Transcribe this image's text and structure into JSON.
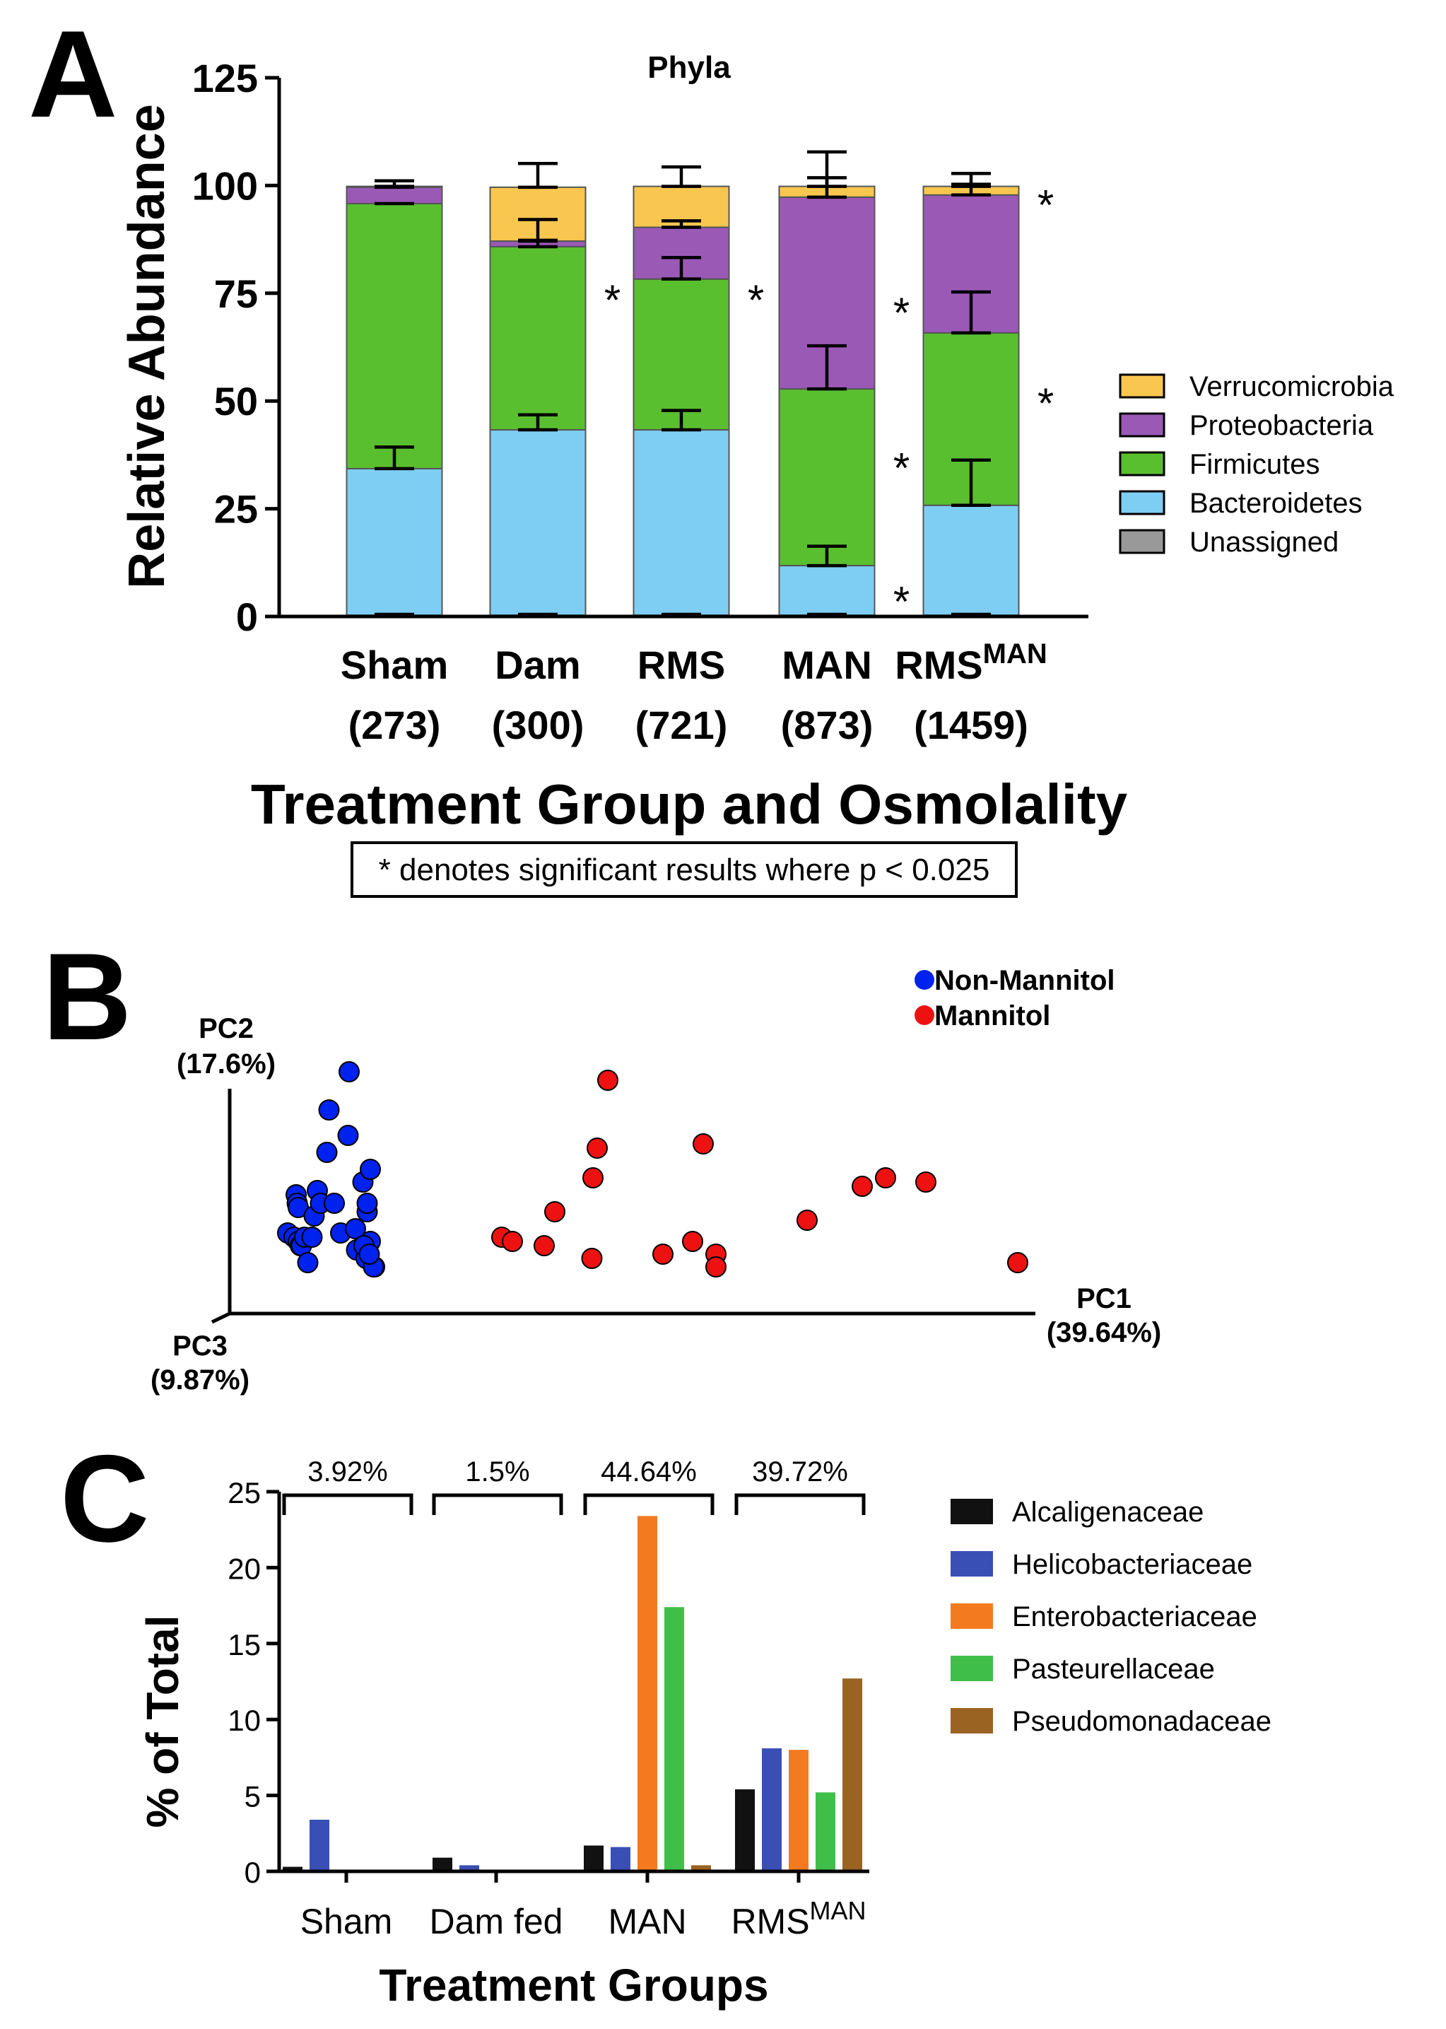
{
  "figure": {
    "panels": {
      "a": "A",
      "b": "B",
      "c": "C"
    }
  },
  "chart_data": [
    {
      "id": "A",
      "type": "bar",
      "stacked": true,
      "title": "Phyla",
      "ylabel": "Relative Abundance",
      "xlabel": "Treatment Group and Osmolality",
      "ylim": [
        0,
        125
      ],
      "yticks": [
        "0",
        "25",
        "50",
        "75",
        "100",
        "125"
      ],
      "categories": [
        {
          "name": "Sham",
          "sup": "",
          "osm": "(273)"
        },
        {
          "name": "Dam",
          "sup": "",
          "osm": "(300)"
        },
        {
          "name": "RMS",
          "sup": "",
          "osm": "(721)"
        },
        {
          "name": "MAN",
          "sup": "",
          "osm": "(873)"
        },
        {
          "name": "RMS",
          "sup": "MAN",
          "osm": "(1459)"
        }
      ],
      "series": [
        {
          "name": "Unassigned",
          "color": "#999999",
          "values": [
            0.3,
            0.3,
            0.3,
            0.3,
            0.3
          ],
          "errors": [
            0,
            0,
            0,
            0,
            0
          ]
        },
        {
          "name": "Bacteroidetes",
          "color": "#7ecef4",
          "values": [
            34,
            43,
            43,
            11.5,
            25.5
          ],
          "errors": [
            5,
            3.5,
            4.5,
            4.5,
            10.5
          ]
        },
        {
          "name": "Firmicutes",
          "color": "#5abf2f",
          "values": [
            61.5,
            42.5,
            35,
            41,
            40
          ],
          "errors": [
            0,
            1.5,
            5,
            10,
            9.5
          ]
        },
        {
          "name": "Proteobacteria",
          "color": "#9b59b6",
          "values": [
            3.8,
            1.3,
            12,
            44.5,
            32
          ],
          "errors": [
            1.5,
            5,
            1.5,
            4.5,
            2.5
          ]
        },
        {
          "name": "Verrucomicrobia",
          "color": "#f9c74f",
          "values": [
            0.2,
            12.5,
            9.5,
            2.5,
            2
          ],
          "errors": [
            0,
            5.5,
            4.5,
            8,
            3
          ]
        }
      ],
      "significance": [
        {
          "category": "Dam",
          "value": 75,
          "label": "*"
        },
        {
          "category": "RMS",
          "value": 75,
          "label": "*"
        },
        {
          "category": "MAN",
          "value": 72,
          "label": "*"
        },
        {
          "category": "MAN",
          "value": 36,
          "label": "*"
        },
        {
          "category": "MAN",
          "value": 5,
          "label": "*"
        },
        {
          "category": "RMS^MAN",
          "value": 97,
          "label": "*"
        },
        {
          "category": "RMS^MAN",
          "value": 51,
          "label": "*"
        }
      ],
      "legend_order": [
        "Verrucomicrobia",
        "Proteobacteria",
        "Firmicutes",
        "Bacteroidetes",
        "Unassigned"
      ],
      "note": "* denotes significant results where p < 0.025"
    },
    {
      "id": "B",
      "type": "scatter",
      "projection": "3d-pca",
      "axes": {
        "pc1": {
          "name": "PC1",
          "pct": "(39.64%)"
        },
        "pc2": {
          "name": "PC2",
          "pct": "(17.6%)"
        },
        "pc3": {
          "name": "PC3",
          "pct": "(9.87%)"
        }
      },
      "series": [
        {
          "name": "Non-Mannitol",
          "color": "#0022ee",
          "points": [
            [
              0.08,
              0.91
            ],
            [
              0.14,
              0.92
            ],
            [
              0.16,
              0.82
            ],
            [
              0.17,
              0.84
            ],
            [
              0.18,
              0.93
            ],
            [
              0.18,
              0.85
            ],
            [
              0.2,
              0.94
            ],
            [
              0.21,
              0.94
            ],
            [
              0.24,
              0.92
            ],
            [
              0.27,
              0.98
            ],
            [
              0.31,
              0.92
            ],
            [
              0.33,
              0.87
            ],
            [
              0.36,
              0.81
            ],
            [
              0.39,
              0.84
            ],
            [
              0.45,
              0.72
            ],
            [
              0.47,
              0.62
            ],
            [
              0.52,
              0.84
            ],
            [
              0.58,
              0.91
            ],
            [
              0.65,
              0.68
            ],
            [
              0.66,
              0.53
            ],
            [
              0.72,
              0.9
            ],
            [
              0.73,
              0.95
            ],
            [
              0.79,
              0.79
            ],
            [
              0.83,
              0.86
            ],
            [
              0.86,
              0.93
            ],
            [
              0.9,
              0.99
            ],
            [
              0.82,
              0.97
            ],
            [
              0.89,
              0.99
            ],
            [
              0.83,
              0.84
            ],
            [
              0.8,
              0.94
            ],
            [
              0.85,
              0.96
            ],
            [
              0.86,
              0.76
            ]
          ]
        },
        {
          "name": "Mannitol",
          "color": "#ee1111",
          "points": [
            [
              2.1,
              0.92
            ],
            [
              2.2,
              0.93
            ],
            [
              2.5,
              0.94
            ],
            [
              2.6,
              0.86
            ],
            [
              2.95,
              0.97
            ],
            [
              2.96,
              0.78
            ],
            [
              3.0,
              0.71
            ],
            [
              3.1,
              0.55
            ],
            [
              3.62,
              0.96
            ],
            [
              3.9,
              0.93
            ],
            [
              4.12,
              0.96
            ],
            [
              4.12,
              0.99
            ],
            [
              4.98,
              0.88
            ],
            [
              5.5,
              0.8
            ],
            [
              5.72,
              0.78
            ],
            [
              6.1,
              0.79
            ],
            [
              7.5,
              0.98
            ],
            [
              4.0,
              0.7
            ]
          ]
        }
      ]
    },
    {
      "id": "C",
      "type": "bar",
      "ylabel": "% of Total",
      "xlabel": "Treatment Groups",
      "ylim": [
        0,
        25
      ],
      "yticks": [
        "0",
        "5",
        "10",
        "15",
        "20",
        "25"
      ],
      "categories": [
        {
          "name": "Sham",
          "sup": ""
        },
        {
          "name": "Dam fed",
          "sup": ""
        },
        {
          "name": "MAN",
          "sup": ""
        },
        {
          "name": "RMS",
          "sup": "MAN"
        }
      ],
      "brackets": [
        "3.92%",
        "1.5%",
        "44.64%",
        "39.72%"
      ],
      "series": [
        {
          "name": "Alcaligenaceae",
          "color": "#111111",
          "values": [
            0.3,
            0.9,
            1.7,
            5.4
          ]
        },
        {
          "name": "Helicobacteriaceae",
          "color": "#3a4fb5",
          "values": [
            3.4,
            0.4,
            1.6,
            8.1
          ]
        },
        {
          "name": "Enterobacteriaceae",
          "color": "#f47a20",
          "values": [
            0,
            0,
            23.4,
            8.0
          ]
        },
        {
          "name": "Pasteurellaceae",
          "color": "#3fbf4a",
          "values": [
            0,
            0,
            17.4,
            5.2
          ]
        },
        {
          "name": "Pseudomonadaceae",
          "color": "#9a6322",
          "values": [
            0,
            0,
            0.4,
            12.7
          ]
        }
      ]
    }
  ]
}
